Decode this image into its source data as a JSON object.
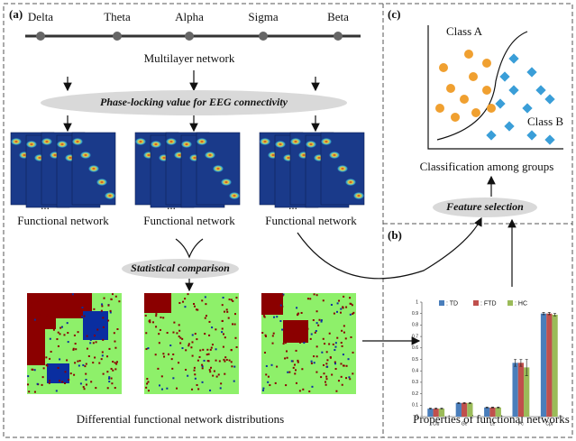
{
  "panel_a": {
    "label": "(a)",
    "bands": [
      "Delta",
      "Theta",
      "Alpha",
      "Sigma",
      "Beta"
    ],
    "multilayer_label": "Multilayer network",
    "plv_label": "Phase-locking value for  EEG connectivity",
    "functional_networks": [
      "Functional network",
      "Functional network",
      "Functional network"
    ],
    "ellipses": [
      "...",
      "...",
      "..."
    ],
    "comparison_label": "Statistical comparison",
    "differential_caption": "Differential functional network distributions"
  },
  "panel_b": {
    "label": "(b)",
    "caption": "Properties of functional networks"
  },
  "panel_c": {
    "label": "(c)",
    "class_a": "Class A",
    "class_b": "Class B",
    "caption": "Classification among groups"
  },
  "feature_selection": "Feature selection",
  "chart_data": {
    "type": "bar",
    "categories": [
      "Clu",
      "Ge",
      "Le",
      "Pc",
      "Cpt"
    ],
    "series": [
      {
        "name": ": TD",
        "color": "#4a7ebb",
        "values": [
          0.07,
          0.12,
          0.08,
          0.47,
          0.9
        ],
        "errors": [
          0.004,
          0.004,
          0.003,
          0.03,
          0.01
        ]
      },
      {
        "name": ": FTD",
        "color": "#c0504d",
        "values": [
          0.07,
          0.12,
          0.08,
          0.47,
          0.9
        ],
        "errors": [
          0.004,
          0.004,
          0.003,
          0.03,
          0.01
        ]
      },
      {
        "name": ": HC",
        "color": "#9bbb59",
        "values": [
          0.07,
          0.12,
          0.08,
          0.43,
          0.89
        ],
        "errors": [
          0.004,
          0.004,
          0.003,
          0.07,
          0.01
        ]
      }
    ],
    "ylim": [
      0,
      1
    ],
    "yticks": [
      0,
      0.1,
      0.2,
      0.3,
      0.4,
      0.5,
      0.6,
      0.7,
      0.8,
      0.9,
      1
    ]
  }
}
